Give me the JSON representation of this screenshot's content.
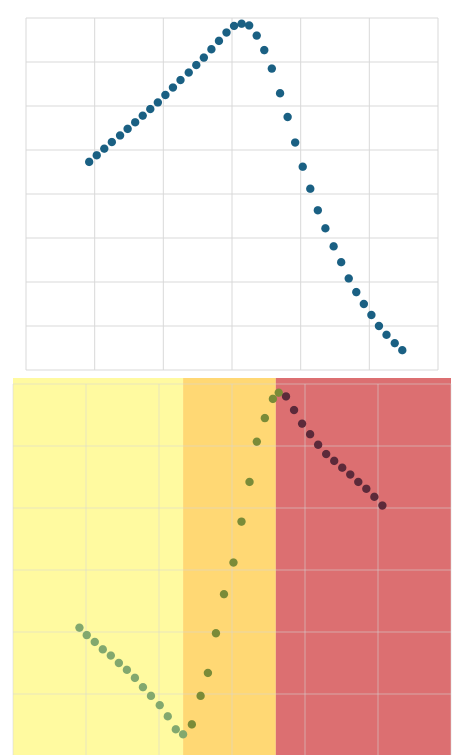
{
  "chart_data": [
    {
      "type": "scatter",
      "title": "",
      "xlabel": "",
      "ylabel": "",
      "grid": true,
      "xlim": [
        0,
        6
      ],
      "ylim": [
        0,
        8
      ],
      "colors": {
        "points": "#1a6083",
        "grid": "#d9d9d9"
      },
      "series": [
        {
          "points": [
            [
              0.92,
              4.73
            ],
            [
              1.03,
              4.88
            ],
            [
              1.14,
              5.03
            ],
            [
              1.25,
              5.18
            ],
            [
              1.37,
              5.33
            ],
            [
              1.48,
              5.48
            ],
            [
              1.59,
              5.63
            ],
            [
              1.7,
              5.78
            ],
            [
              1.81,
              5.93
            ],
            [
              1.92,
              6.08
            ],
            [
              2.03,
              6.25
            ],
            [
              2.14,
              6.42
            ],
            [
              2.25,
              6.59
            ],
            [
              2.37,
              6.76
            ],
            [
              2.48,
              6.93
            ],
            [
              2.59,
              7.1
            ],
            [
              2.7,
              7.29
            ],
            [
              2.81,
              7.48
            ],
            [
              2.92,
              7.67
            ],
            [
              3.03,
              7.82
            ],
            [
              3.14,
              7.87
            ],
            [
              3.25,
              7.83
            ],
            [
              3.36,
              7.6
            ],
            [
              3.47,
              7.27
            ],
            [
              3.58,
              6.85
            ],
            [
              3.7,
              6.29
            ],
            [
              3.81,
              5.75
            ],
            [
              3.92,
              5.17
            ],
            [
              4.03,
              4.62
            ],
            [
              4.14,
              4.12
            ],
            [
              4.25,
              3.63
            ],
            [
              4.36,
              3.22
            ],
            [
              4.48,
              2.81
            ],
            [
              4.59,
              2.45
            ],
            [
              4.7,
              2.08
            ],
            [
              4.81,
              1.77
            ],
            [
              4.92,
              1.5
            ],
            [
              5.03,
              1.25
            ],
            [
              5.14,
              1.0
            ],
            [
              5.25,
              0.8
            ],
            [
              5.37,
              0.61
            ],
            [
              5.48,
              0.45
            ]
          ]
        }
      ]
    },
    {
      "type": "scatter",
      "title": "",
      "xlabel": "",
      "ylabel": "",
      "grid": true,
      "xlim": [
        0,
        6
      ],
      "ylim": [
        0,
        6
      ],
      "colors": {
        "grid": "#d6d6d6"
      },
      "regions": [
        {
          "x0": 0,
          "x1": 2.33,
          "color": "#fffaa0"
        },
        {
          "x0": 2.33,
          "x1": 3.6,
          "color": "#ffd874"
        },
        {
          "x0": 3.6,
          "x1": 6,
          "color": "#dc6f71"
        }
      ],
      "series": [
        {
          "color": "#82a86e",
          "points": [
            [
              0.91,
              2.07
            ],
            [
              1.01,
              1.95
            ],
            [
              1.12,
              1.84
            ],
            [
              1.23,
              1.72
            ],
            [
              1.34,
              1.62
            ],
            [
              1.45,
              1.5
            ],
            [
              1.56,
              1.39
            ],
            [
              1.67,
              1.26
            ],
            [
              1.78,
              1.11
            ],
            [
              1.89,
              0.97
            ],
            [
              2.01,
              0.82
            ],
            [
              2.12,
              0.64
            ],
            [
              2.23,
              0.43
            ],
            [
              2.33,
              0.35
            ]
          ]
        },
        {
          "color": "#7a8b38",
          "points": [
            [
              2.45,
              0.51
            ],
            [
              2.57,
              0.97
            ],
            [
              2.67,
              1.34
            ],
            [
              2.78,
              1.98
            ],
            [
              2.89,
              2.61
            ],
            [
              3.02,
              3.12
            ],
            [
              3.13,
              3.78
            ],
            [
              3.24,
              4.42
            ],
            [
              3.34,
              5.07
            ],
            [
              3.45,
              5.45
            ],
            [
              3.56,
              5.76
            ],
            [
              3.64,
              5.86
            ]
          ]
        },
        {
          "color": "#5c2a3a",
          "points": [
            [
              3.74,
              5.8
            ],
            [
              3.85,
              5.58
            ],
            [
              3.96,
              5.36
            ],
            [
              4.07,
              5.19
            ],
            [
              4.18,
              5.02
            ],
            [
              4.29,
              4.87
            ],
            [
              4.4,
              4.76
            ],
            [
              4.51,
              4.65
            ],
            [
              4.62,
              4.54
            ],
            [
              4.73,
              4.42
            ],
            [
              4.84,
              4.31
            ],
            [
              4.95,
              4.18
            ],
            [
              5.06,
              4.04
            ]
          ]
        }
      ]
    }
  ]
}
